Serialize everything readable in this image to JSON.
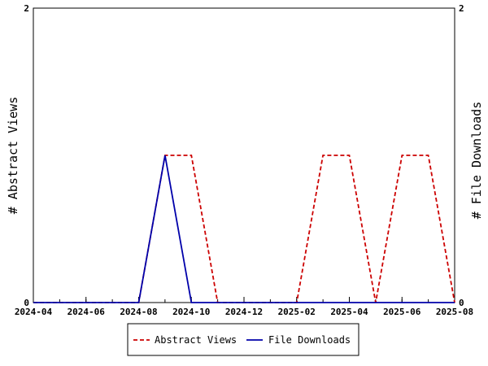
{
  "chart_data": {
    "type": "line",
    "x_ticks": [
      "2024-04",
      "2024-06",
      "2024-08",
      "2024-10",
      "2024-12",
      "2025-02",
      "2025-04",
      "2025-06",
      "2025-08"
    ],
    "x": [
      "2024-04",
      "2024-05",
      "2024-06",
      "2024-07",
      "2024-08",
      "2024-09",
      "2024-10",
      "2024-11",
      "2024-12",
      "2025-01",
      "2025-02",
      "2025-03",
      "2025-04",
      "2025-05",
      "2025-06",
      "2025-07",
      "2025-08"
    ],
    "series": [
      {
        "name": "Abstract Views",
        "axis": "left",
        "color": "#cc0000",
        "style": "dashed",
        "values": [
          0,
          0,
          0,
          0,
          0,
          1,
          1,
          0,
          0,
          0,
          0,
          1,
          1,
          0,
          1,
          1,
          0
        ]
      },
      {
        "name": "File Downloads",
        "axis": "right",
        "color": "#0000aa",
        "style": "solid",
        "values": [
          0,
          0,
          0,
          0,
          0,
          1,
          0,
          0,
          0,
          0,
          0,
          0,
          0,
          0,
          0,
          0,
          0
        ]
      }
    ],
    "ylabel_left": "# Abstract Views",
    "ylabel_right": "# File Downloads",
    "ylim_left": [
      0,
      2
    ],
    "ylim_right": [
      0,
      2
    ],
    "y_ticks_left": [
      "0",
      "2"
    ],
    "y_ticks_right": [
      "0",
      "2"
    ],
    "grid": false,
    "legend_position": "bottom"
  }
}
